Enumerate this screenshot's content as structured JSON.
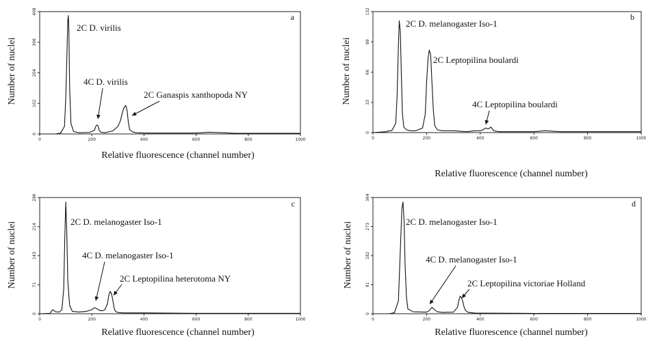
{
  "chart_data": [
    {
      "type": "line",
      "panel_letter": "a",
      "xlabel": "Relative fluorescence (channel number)",
      "ylabel": "Number of nuclei",
      "xlim": [
        0,
        1000
      ],
      "ylim": [
        0,
        408
      ],
      "x_ticks": [
        "0",
        "200",
        "400",
        "600",
        "800",
        "1000"
      ],
      "y_ticks": [
        "0",
        "102",
        "204",
        "306",
        "408"
      ],
      "series": [
        {
          "x": [
            0,
            60,
            80,
            95,
            100,
            105,
            108,
            110,
            112,
            115,
            120,
            130,
            150,
            190,
            210,
            215,
            220,
            225,
            228,
            235,
            250,
            280,
            300,
            310,
            318,
            325,
            330,
            335,
            340,
            345,
            355,
            370,
            400,
            500,
            600,
            650,
            700,
            750,
            1000
          ],
          "y": [
            0,
            0,
            3,
            25,
            120,
            280,
            380,
            395,
            340,
            150,
            35,
            8,
            4,
            5,
            12,
            25,
            30,
            25,
            12,
            6,
            4,
            10,
            25,
            45,
            75,
            90,
            95,
            80,
            40,
            15,
            7,
            4,
            3,
            3,
            3,
            6,
            4,
            2,
            2
          ]
        }
      ],
      "annotations": [
        {
          "text": "2C D. virilis"
        },
        {
          "text": "4C D. virilis"
        },
        {
          "text": "2C Ganaspis xanthopoda NY"
        }
      ]
    },
    {
      "type": "line",
      "panel_letter": "b",
      "xlabel": "Relative fluorescence (channel number)",
      "ylabel": "Number of nuclei",
      "xlim": [
        0,
        1000
      ],
      "ylim": [
        0,
        132
      ],
      "x_ticks": [
        "0",
        "200",
        "400",
        "600",
        "800",
        "1000"
      ],
      "y_ticks": [
        "0",
        "33",
        "66",
        "99",
        "132"
      ],
      "series": [
        {
          "x": [
            0,
            50,
            60,
            70,
            85,
            90,
            95,
            98,
            102,
            106,
            110,
            115,
            125,
            140,
            160,
            185,
            195,
            200,
            205,
            210,
            215,
            220,
            225,
            230,
            240,
            260,
            300,
            350,
            380,
            400,
            410,
            420,
            430,
            440,
            450,
            470,
            500,
            600,
            640,
            700,
            1000
          ],
          "y": [
            0,
            1,
            2,
            2,
            10,
            40,
            95,
            122,
            110,
            60,
            20,
            6,
            3,
            2,
            2,
            5,
            20,
            55,
            80,
            90,
            85,
            55,
            25,
            8,
            3,
            2,
            2,
            1,
            2,
            2,
            3,
            5,
            4,
            6,
            2,
            1,
            1,
            1,
            2,
            1,
            1
          ]
        }
      ],
      "annotations": [
        {
          "text": "2C D. melanogaster Iso-1"
        },
        {
          "text": "2C Leptopilina boulardi"
        },
        {
          "text": "4C Leptopilina boulardi"
        }
      ]
    },
    {
      "type": "line",
      "panel_letter": "c",
      "xlabel": "Relative fluorescence (channel number)",
      "ylabel": "Number of nuclei",
      "xlim": [
        0,
        1000
      ],
      "ylim": [
        0,
        286
      ],
      "x_ticks": [
        "0",
        "200",
        "400",
        "600",
        "800",
        "1000"
      ],
      "y_ticks": [
        "0",
        "71",
        "143",
        "214",
        "286"
      ],
      "series": [
        {
          "x": [
            0,
            40,
            50,
            60,
            75,
            85,
            92,
            96,
            100,
            104,
            108,
            115,
            125,
            150,
            180,
            200,
            210,
            220,
            230,
            240,
            250,
            260,
            265,
            270,
            275,
            280,
            285,
            290,
            300,
            320,
            400,
            600,
            800,
            1000
          ],
          "y": [
            0,
            1,
            10,
            5,
            4,
            10,
            60,
            180,
            275,
            200,
            80,
            20,
            6,
            4,
            6,
            10,
            15,
            12,
            8,
            7,
            10,
            25,
            45,
            55,
            50,
            35,
            15,
            6,
            3,
            2,
            2,
            1,
            1,
            1
          ]
        }
      ],
      "annotations": [
        {
          "text": "2C D. melanogaster Iso-1"
        },
        {
          "text": "4C D. melanogaster Iso-1"
        },
        {
          "text": "2C Leptopilina heterotoma NY"
        }
      ]
    },
    {
      "type": "line",
      "panel_letter": "d",
      "xlabel": "Relative fluorescence (channel number)",
      "ylabel": "Number of nuclei",
      "xlim": [
        0,
        1000
      ],
      "ylim": [
        0,
        364
      ],
      "x_ticks": [
        "0",
        "200",
        "400",
        "600",
        "800",
        "1000"
      ],
      "y_ticks": [
        "0",
        "91",
        "182",
        "273",
        "364"
      ],
      "series": [
        {
          "x": [
            0,
            60,
            80,
            95,
            102,
            108,
            112,
            116,
            120,
            125,
            130,
            150,
            200,
            210,
            220,
            230,
            240,
            260,
            300,
            315,
            320,
            325,
            330,
            335,
            340,
            345,
            355,
            380,
            600,
            1000
          ],
          "y": [
            0,
            0,
            3,
            40,
            200,
            330,
            350,
            290,
            150,
            50,
            15,
            6,
            5,
            10,
            20,
            12,
            6,
            4,
            5,
            20,
            40,
            55,
            50,
            38,
            20,
            10,
            4,
            2,
            1,
            1
          ]
        }
      ],
      "annotations": [
        {
          "text": "2C D. melanogaster Iso-1"
        },
        {
          "text": "4C D. melanogaster Iso-1"
        },
        {
          "text": "2C Leptopilina victoriae Holland"
        }
      ]
    }
  ]
}
